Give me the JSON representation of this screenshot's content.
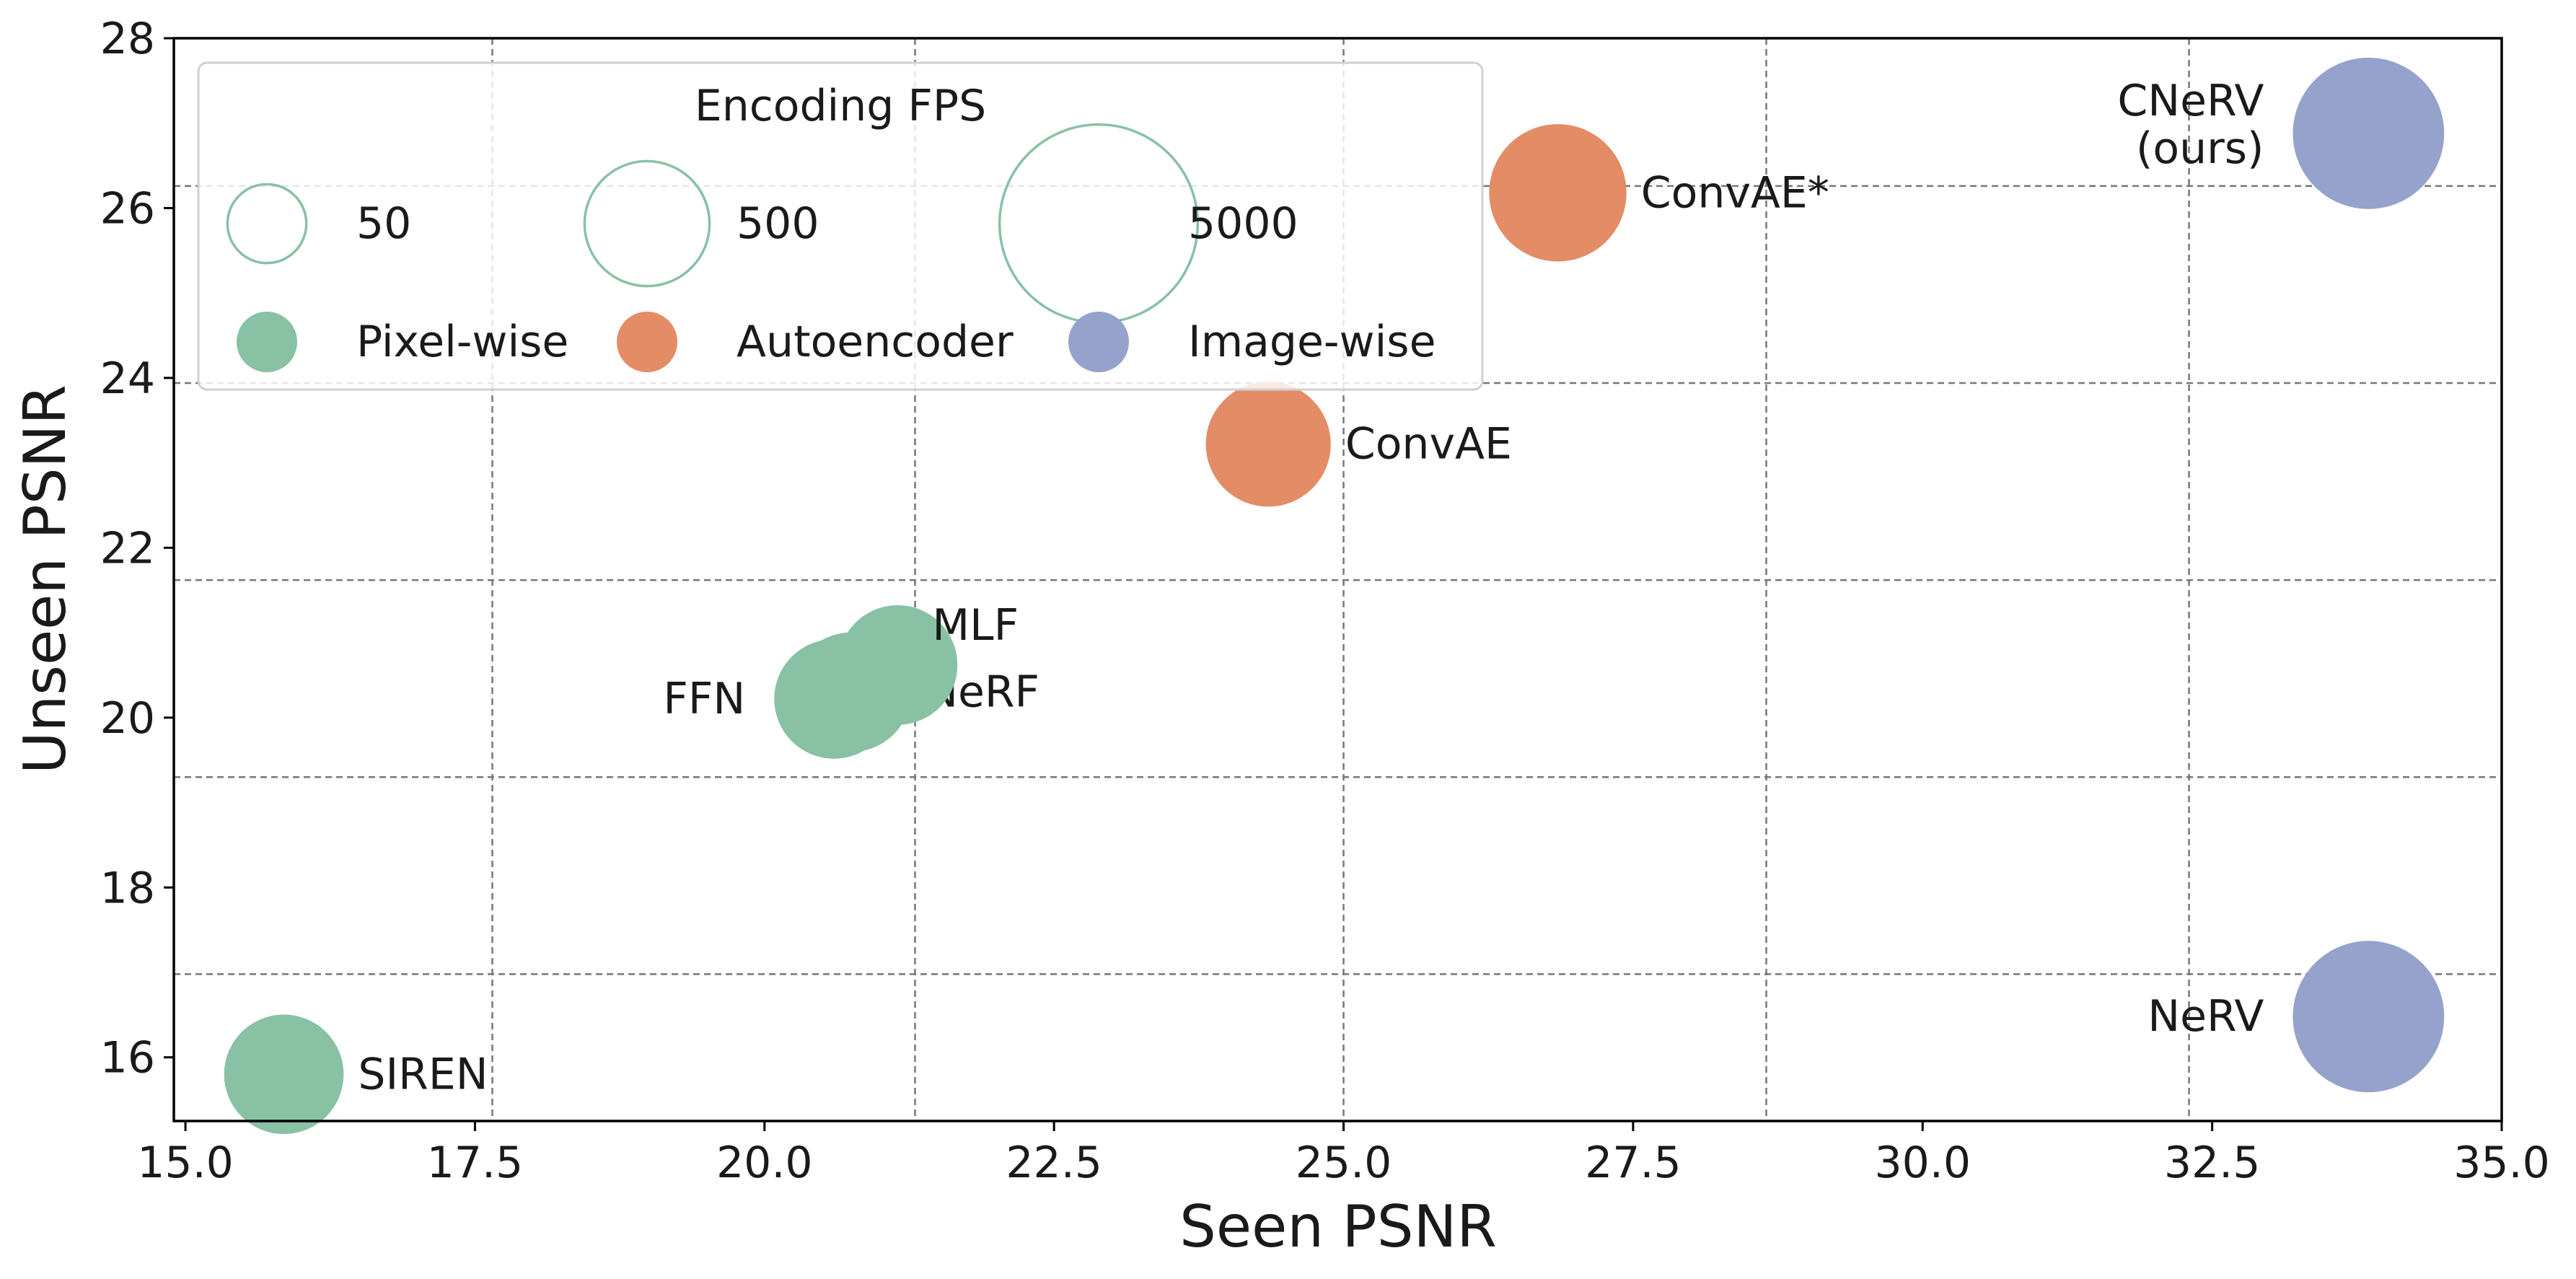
{
  "chart_data": {
    "type": "scatter",
    "xlabel": "Seen PSNR",
    "ylabel": "Unseen PSNR",
    "xlim": [
      14.9,
      35.0
    ],
    "ylim": [
      15.25,
      28.0
    ],
    "x_ticks": [
      "15.0",
      "17.5",
      "20.0",
      "22.5",
      "25.0",
      "27.5",
      "30.0",
      "32.5",
      "35.0"
    ],
    "y_ticks": [
      "16",
      "18",
      "20",
      "22",
      "24",
      "26",
      "28"
    ],
    "grid_x_lines": [
      17.65,
      21.3,
      25.0,
      28.65,
      32.3
    ],
    "grid_y_lines": [
      16.98,
      19.3,
      21.62,
      23.94,
      26.26
    ],
    "grid": "dashed",
    "legend": {
      "placement": "top-left",
      "title": "Encoding FPS",
      "sizes": [
        {
          "label": "50",
          "fps": 50
        },
        {
          "label": "500",
          "fps": 500
        },
        {
          "label": "5000",
          "fps": 5000
        }
      ],
      "categories": [
        {
          "label": "Pixel-wise",
          "color": "#88c1a4"
        },
        {
          "label": "Autoencoder",
          "color": "#e48c65"
        },
        {
          "label": "Image-wise",
          "color": "#95a2cc"
        }
      ]
    },
    "points": [
      {
        "label": "SIREN",
        "x": 15.85,
        "y": 15.8,
        "category": "Pixel-wise",
        "fps": 400,
        "label_pos": "right"
      },
      {
        "label": "FFN",
        "x": 20.6,
        "y": 20.22,
        "category": "Pixel-wise",
        "fps": 400,
        "label_pos": "left"
      },
      {
        "label": "NeRF",
        "x": 20.75,
        "y": 20.3,
        "category": "Pixel-wise",
        "fps": 400,
        "label_pos": "right"
      },
      {
        "label": "MLF",
        "x": 21.15,
        "y": 20.62,
        "category": "Pixel-wise",
        "fps": 400,
        "label_pos": "upper-right"
      },
      {
        "label": "ConvAE",
        "x": 24.35,
        "y": 23.22,
        "category": "Autoencoder",
        "fps": 500,
        "label_pos": "right"
      },
      {
        "label": "ConvAE*",
        "x": 26.85,
        "y": 26.18,
        "category": "Autoencoder",
        "fps": 800,
        "label_pos": "right"
      },
      {
        "label": "CNeRV\n(ours)",
        "x": 33.85,
        "y": 26.88,
        "category": "Image-wise",
        "fps": 1300,
        "label_pos": "left"
      },
      {
        "label": "NeRV",
        "x": 33.85,
        "y": 16.48,
        "category": "Image-wise",
        "fps": 1300,
        "label_pos": "left"
      }
    ]
  }
}
